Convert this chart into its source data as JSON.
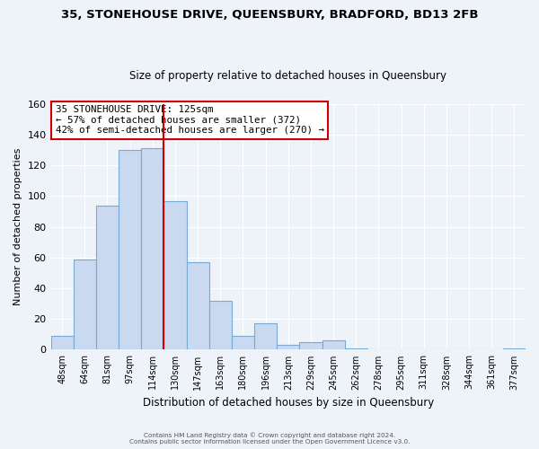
{
  "title": "35, STONEHOUSE DRIVE, QUEENSBURY, BRADFORD, BD13 2FB",
  "subtitle": "Size of property relative to detached houses in Queensbury",
  "xlabel": "Distribution of detached houses by size in Queensbury",
  "ylabel": "Number of detached properties",
  "bar_labels": [
    "48sqm",
    "64sqm",
    "81sqm",
    "97sqm",
    "114sqm",
    "130sqm",
    "147sqm",
    "163sqm",
    "180sqm",
    "196sqm",
    "213sqm",
    "229sqm",
    "245sqm",
    "262sqm",
    "278sqm",
    "295sqm",
    "311sqm",
    "328sqm",
    "344sqm",
    "361sqm",
    "377sqm"
  ],
  "bar_values": [
    9,
    59,
    94,
    130,
    131,
    97,
    57,
    32,
    9,
    17,
    3,
    5,
    6,
    1,
    0,
    0,
    0,
    0,
    0,
    0,
    1
  ],
  "bar_color": "#c8d9f0",
  "bar_edge_color": "#7aaad4",
  "highlight_index": 5,
  "highlight_line_color": "#cc0000",
  "annotation_title": "35 STONEHOUSE DRIVE: 125sqm",
  "annotation_line1": "← 57% of detached houses are smaller (372)",
  "annotation_line2": "42% of semi-detached houses are larger (270) →",
  "annotation_box_color": "#ffffff",
  "annotation_box_edge_color": "#cc0000",
  "footer_line1": "Contains HM Land Registry data © Crown copyright and database right 2024.",
  "footer_line2": "Contains public sector information licensed under the Open Government Licence v3.0.",
  "background_color": "#eef2f9",
  "plot_bg_color": "#eef2f9",
  "grid_color": "#ffffff",
  "ylim": [
    0,
    160
  ],
  "yticks": [
    0,
    20,
    40,
    60,
    80,
    100,
    120,
    140,
    160
  ]
}
